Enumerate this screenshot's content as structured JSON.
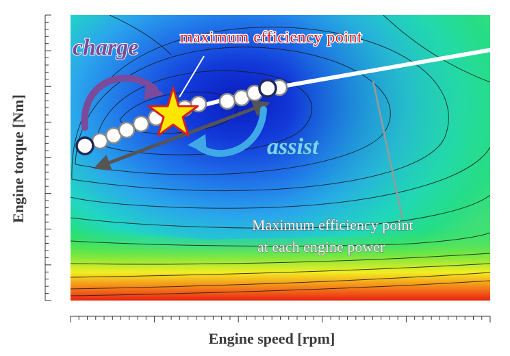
{
  "axes": {
    "x_label": "Engine speed [rpm]",
    "y_label": "Engine torque [Nm]"
  },
  "annotations": {
    "max_point_label": "maximum efficiency point",
    "charge_label": "charge",
    "assist_label": "assist",
    "curve_label_line1": "Maximum efficiency point",
    "curve_label_line2": "at each engine power"
  },
  "colors": {
    "charge_arrow": "#7b4a9a",
    "assist_arrow": "#3fa9e8",
    "max_label": "#e0202a",
    "star_fill": "#ffe600",
    "star_stroke": "#d42020",
    "range_arrow": "#555555",
    "operating_line": "#ffffff",
    "endpoint_stroke": "#1d2a5a"
  },
  "scale": {
    "x_minor_ticks": 50,
    "x_major_every": 10,
    "y_minor_ticks": 40,
    "y_major_every": 5
  },
  "operating_points": {
    "count": 12
  }
}
